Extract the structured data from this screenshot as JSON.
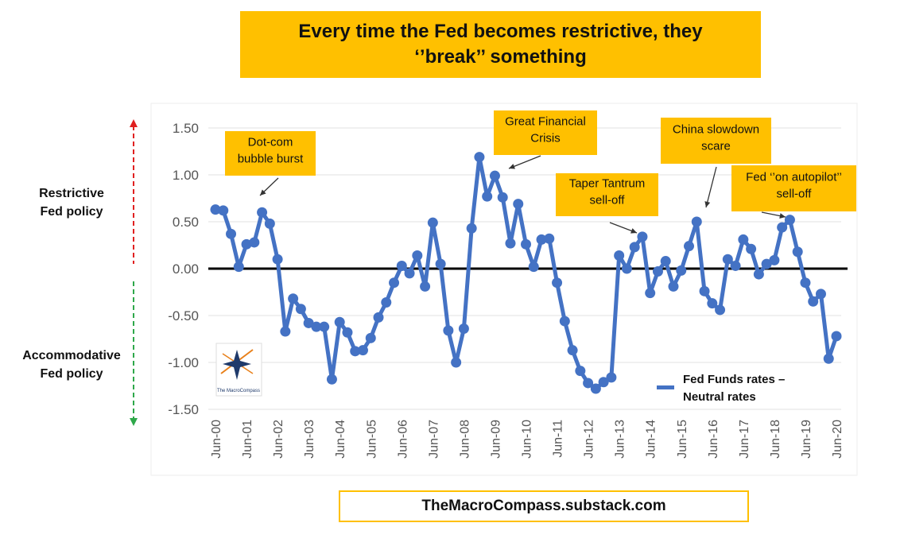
{
  "title": "Every time the Fed becomes restrictive, they ‘’break’’ something",
  "side_labels": {
    "restrictive": "Restrictive Fed policy",
    "accommodative": "Accommodative Fed policy"
  },
  "footer": "TheMacroCompass.substack.com",
  "logo": {
    "text": "The MacroCompass",
    "icon": "compass-star-icon"
  },
  "colors": {
    "accent": "#ffc000",
    "series": "#4472c4",
    "arrow_up": "#e02020",
    "arrow_down": "#2ea84a",
    "zero_line": "#000000"
  },
  "chart_data": {
    "type": "line",
    "title": "",
    "xlabel": "",
    "ylabel": "",
    "ylim": [
      -1.5,
      1.5
    ],
    "yticks": [
      "1.50",
      "1.00",
      "0.50",
      "0.00",
      "-0.50",
      "-1.00",
      "-1.50"
    ],
    "ytick_values": [
      1.5,
      1.0,
      0.5,
      0.0,
      -0.5,
      -1.0,
      -1.5
    ],
    "x_start_year": 2000.0,
    "x_step_years": 0.25,
    "x_labels": [
      "Jun-00",
      "Jun-01",
      "Jun-02",
      "Jun-03",
      "Jun-04",
      "Jun-05",
      "Jun-06",
      "Jun-07",
      "Jun-08",
      "Jun-09",
      "Jun-10",
      "Jun-11",
      "Jun-12",
      "Jun-13",
      "Jun-14",
      "Jun-15",
      "Jun-16",
      "Jun-17",
      "Jun-18",
      "Jun-19",
      "Jun-20"
    ],
    "grid": true,
    "legend": {
      "position": "bottom-right",
      "label": "Fed Funds rates – Neutral rates"
    },
    "series": [
      {
        "name": "Fed Funds rates – Neutral rates",
        "values": [
          0.63,
          0.62,
          0.37,
          0.02,
          0.26,
          0.28,
          0.6,
          0.48,
          0.1,
          -0.67,
          -0.32,
          -0.43,
          -0.58,
          -0.62,
          -0.62,
          -1.18,
          -0.57,
          -0.68,
          -0.88,
          -0.87,
          -0.74,
          -0.52,
          -0.36,
          -0.15,
          0.03,
          -0.05,
          0.14,
          -0.19,
          0.49,
          0.05,
          -0.66,
          -1.0,
          -0.64,
          0.43,
          1.19,
          0.77,
          0.99,
          0.76,
          0.27,
          0.69,
          0.26,
          0.02,
          0.31,
          0.32,
          -0.15,
          -0.56,
          -0.87,
          -1.09,
          -1.22,
          -1.28,
          -1.21,
          -1.16,
          0.14,
          0.0,
          0.23,
          0.34,
          -0.26,
          -0.03,
          0.08,
          -0.19,
          -0.02,
          0.24,
          0.5,
          -0.24,
          -0.37,
          -0.44,
          0.1,
          0.03,
          0.31,
          0.21,
          -0.06,
          0.05,
          0.09,
          0.44,
          0.52,
          0.18,
          -0.15,
          -0.35,
          -0.27,
          -0.96,
          -0.72
        ]
      }
    ],
    "annotations": [
      {
        "text": "Dot-com bubble burst",
        "x": 2001.3,
        "y": 0.93
      },
      {
        "text": "Great Financial Crisis",
        "x": 2009.5,
        "y": 1.08
      },
      {
        "text": "Taper Tantrum sell-off",
        "x": 2013.4,
        "y": 0.38
      },
      {
        "text": "China slowdown scare",
        "x": 2016.1,
        "y": 0.66
      },
      {
        "text": "Fed ‘’on autopilot’’ sell-off",
        "x": 2018.0,
        "y": 0.57
      }
    ]
  }
}
